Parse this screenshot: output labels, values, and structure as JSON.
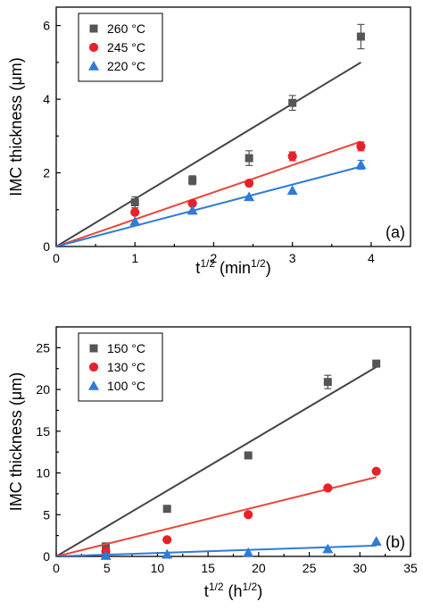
{
  "chart_data": [
    {
      "type": "scatter",
      "panel_label": "(a)",
      "xlabel": {
        "base": "t",
        "sup": "1/2",
        "unit_base": " (min",
        "unit_sup": "1/2",
        "unit_close": ")"
      },
      "ylabel": "IMC thickness (μm)",
      "xlim": [
        0,
        4.5
      ],
      "ylim": [
        0,
        6.5
      ],
      "xticks": [
        0,
        1,
        2,
        3,
        4
      ],
      "yticks": [
        0,
        2,
        4,
        6
      ],
      "legend_position": "top-left",
      "grid": false,
      "series": [
        {
          "name": "260 °C",
          "marker": "square",
          "color": "#555555",
          "line_color": "#444444",
          "x": [
            1,
            1.73,
            2.45,
            3.0,
            3.87
          ],
          "y": [
            1.2,
            1.8,
            2.4,
            3.9,
            5.7
          ],
          "err": [
            0.15,
            0.12,
            0.2,
            0.2,
            0.33
          ],
          "fit": {
            "x": [
              0,
              3.87
            ],
            "y": [
              0,
              5.0
            ]
          }
        },
        {
          "name": "245 °C",
          "marker": "circle",
          "color": "#e8202a",
          "line_color": "#e8463a",
          "x": [
            1,
            1.73,
            2.45,
            3.0,
            3.87
          ],
          "y": [
            0.93,
            1.17,
            1.72,
            2.45,
            2.72
          ],
          "err": [
            0,
            0,
            0,
            0.12,
            0.12
          ],
          "fit": {
            "x": [
              0,
              3.87
            ],
            "y": [
              0,
              2.85
            ]
          }
        },
        {
          "name": "220 °C",
          "marker": "triangle",
          "color": "#2f7bd6",
          "line_color": "#2f7bd6",
          "x": [
            1,
            1.73,
            2.45,
            3.0,
            3.87
          ],
          "y": [
            0.68,
            0.98,
            1.35,
            1.52,
            2.22
          ],
          "err": [
            0,
            0,
            0,
            0,
            0.12
          ],
          "fit": {
            "x": [
              0,
              3.87
            ],
            "y": [
              0,
              2.17
            ]
          }
        }
      ]
    },
    {
      "type": "scatter",
      "panel_label": "(b)",
      "xlabel": {
        "base": "t",
        "sup": "1/2",
        "unit_base": " (h",
        "unit_sup": "1/2",
        "unit_close": ")"
      },
      "ylabel": "IMC thickness (μm)",
      "xlim": [
        0,
        35
      ],
      "ylim": [
        0,
        27.5
      ],
      "xticks": [
        0,
        5,
        10,
        15,
        20,
        25,
        30,
        35
      ],
      "yticks": [
        0,
        5,
        10,
        15,
        20,
        25
      ],
      "legend_position": "top-left",
      "grid": false,
      "series": [
        {
          "name": "150 °C",
          "marker": "square",
          "color": "#555555",
          "line_color": "#444444",
          "x": [
            4.9,
            10.95,
            18.97,
            26.83,
            31.62
          ],
          "y": [
            1.2,
            5.7,
            12.1,
            20.9,
            23.1
          ],
          "err": [
            0,
            0,
            0,
            0.8,
            0
          ],
          "fit": {
            "x": [
              0,
              31.62
            ],
            "y": [
              0,
              22.7
            ]
          }
        },
        {
          "name": "130 °C",
          "marker": "circle",
          "color": "#e8202a",
          "line_color": "#e8463a",
          "x": [
            4.9,
            10.95,
            18.97,
            26.83,
            31.62
          ],
          "y": [
            0.6,
            2.0,
            5.0,
            8.2,
            10.2
          ],
          "err": [
            0,
            0,
            0,
            0,
            0
          ],
          "fit": {
            "x": [
              0,
              31.62
            ],
            "y": [
              0,
              9.5
            ]
          }
        },
        {
          "name": "100 °C",
          "marker": "triangle",
          "color": "#2f7bd6",
          "line_color": "#2f7bd6",
          "x": [
            4.9,
            10.95,
            18.97,
            26.83,
            31.62
          ],
          "y": [
            0.1,
            0.25,
            0.45,
            0.9,
            1.8
          ],
          "err": [
            0,
            0,
            0,
            0,
            0
          ],
          "fit": {
            "x": [
              0,
              31.62
            ],
            "y": [
              0,
              1.3
            ]
          }
        }
      ]
    }
  ]
}
